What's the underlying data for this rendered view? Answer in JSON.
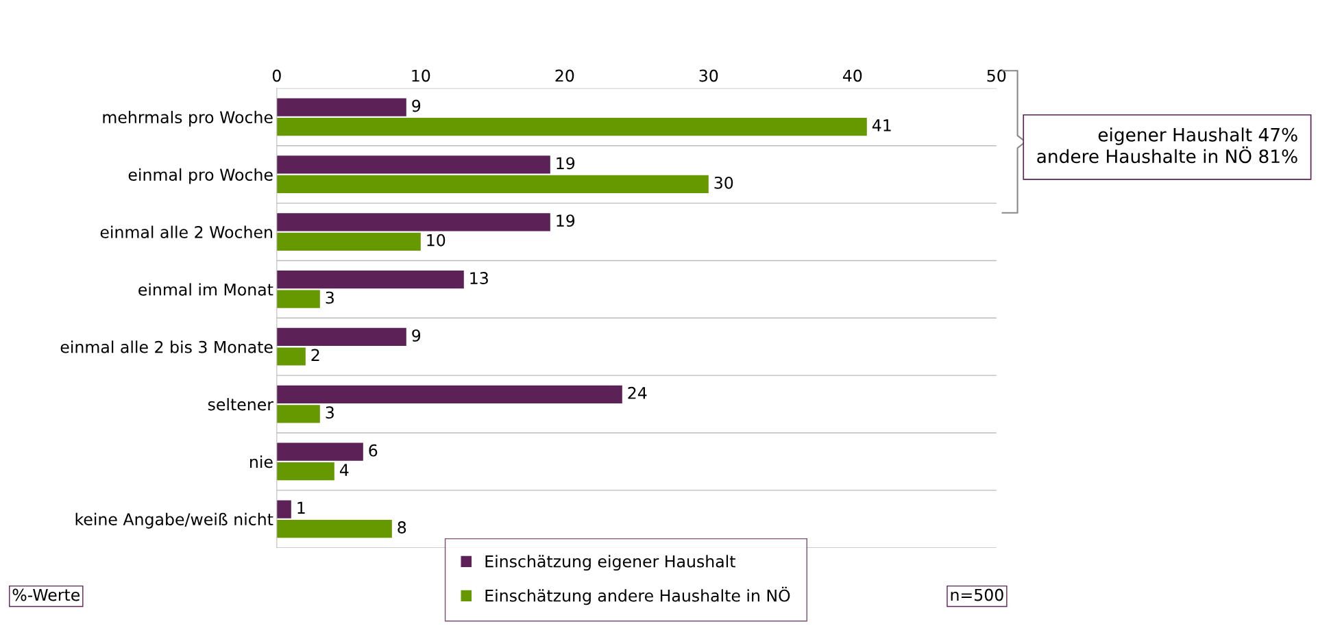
{
  "chart_data": {
    "type": "bar",
    "orientation": "horizontal",
    "categories": [
      "mehrmals pro Woche",
      "einmal pro Woche",
      "einmal alle 2 Wochen",
      "einmal im Monat",
      "einmal alle 2 bis 3 Monate",
      "seltener",
      "nie",
      "keine Angabe/weiß nicht"
    ],
    "series": [
      {
        "name": "Einschätzung eigener Haushalt",
        "color": "#5c2157",
        "values": [
          9,
          19,
          19,
          13,
          9,
          24,
          6,
          1
        ]
      },
      {
        "name": "Einschätzung andere Haushalte in NÖ",
        "color": "#669900",
        "values": [
          41,
          30,
          10,
          3,
          2,
          3,
          4,
          8
        ]
      }
    ],
    "xlim": [
      0,
      50
    ],
    "xticks": [
      0,
      10,
      20,
      30,
      40,
      50
    ],
    "data_labels": true,
    "legend": "bottom",
    "grid": false,
    "annotations": [
      "eigener Haushalt 47%\nandere Haushalte in NÖ 81%",
      "%-Werte",
      "n=500"
    ]
  }
}
